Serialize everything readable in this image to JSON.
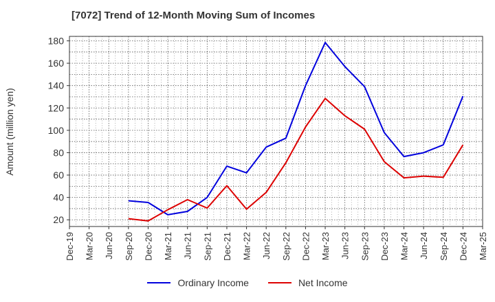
{
  "chart_data": {
    "type": "line",
    "title": "[7072]  Trend of 12-Month Moving Sum of Incomes",
    "xlabel": "",
    "ylabel": "Amount (million yen)",
    "ylim": [
      14,
      184
    ],
    "yticks": [
      20,
      40,
      60,
      80,
      100,
      120,
      140,
      160,
      180
    ],
    "categories": [
      "Dec-19",
      "Mar-20",
      "Jun-20",
      "Sep-20",
      "Dec-20",
      "Mar-21",
      "Jun-21",
      "Sep-21",
      "Dec-21",
      "Mar-22",
      "Jun-22",
      "Sep-22",
      "Dec-22",
      "Mar-23",
      "Jun-23",
      "Sep-23",
      "Dec-23",
      "Mar-24",
      "Jun-24",
      "Sep-24",
      "Dec-24",
      "Mar-25"
    ],
    "grid": true,
    "legend_position": "bottom",
    "series": [
      {
        "name": "Ordinary Income",
        "color": "#0000dd",
        "values": [
          null,
          null,
          null,
          37,
          35.5,
          24.5,
          27.5,
          40,
          68,
          62,
          85,
          93,
          140,
          178.5,
          157,
          139,
          98,
          76.5,
          80,
          87,
          130.5,
          null
        ]
      },
      {
        "name": "Net Income",
        "color": "#dd0000",
        "values": [
          null,
          null,
          null,
          21,
          19,
          29,
          38,
          30.5,
          50.5,
          29.5,
          44.5,
          71,
          103,
          128.5,
          113,
          101,
          72,
          57.5,
          59,
          58,
          87,
          null
        ]
      }
    ]
  }
}
